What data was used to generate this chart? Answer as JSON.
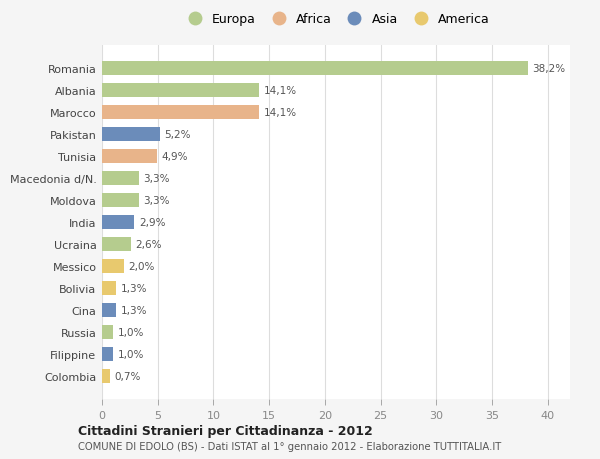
{
  "categories": [
    "Romania",
    "Albania",
    "Marocco",
    "Pakistan",
    "Tunisia",
    "Macedonia d/N.",
    "Moldova",
    "India",
    "Ucraina",
    "Messico",
    "Bolivia",
    "Cina",
    "Russia",
    "Filippine",
    "Colombia"
  ],
  "values": [
    38.2,
    14.1,
    14.1,
    5.2,
    4.9,
    3.3,
    3.3,
    2.9,
    2.6,
    2.0,
    1.3,
    1.3,
    1.0,
    1.0,
    0.7
  ],
  "labels": [
    "38,2%",
    "14,1%",
    "14,1%",
    "5,2%",
    "4,9%",
    "3,3%",
    "3,3%",
    "2,9%",
    "2,6%",
    "2,0%",
    "1,3%",
    "1,3%",
    "1,0%",
    "1,0%",
    "0,7%"
  ],
  "colors": [
    "#b5cc8e",
    "#b5cc8e",
    "#e8b48a",
    "#6b8cba",
    "#e8b48a",
    "#b5cc8e",
    "#b5cc8e",
    "#6b8cba",
    "#b5cc8e",
    "#e8c96e",
    "#e8c96e",
    "#6b8cba",
    "#b5cc8e",
    "#6b8cba",
    "#e8c96e"
  ],
  "legend_labels": [
    "Europa",
    "Africa",
    "Asia",
    "America"
  ],
  "legend_colors": [
    "#b5cc8e",
    "#e8b48a",
    "#6b8cba",
    "#e8c96e"
  ],
  "title": "Cittadini Stranieri per Cittadinanza - 2012",
  "subtitle": "COMUNE DI EDOLO (BS) - Dati ISTAT al 1° gennaio 2012 - Elaborazione TUTTITALIA.IT",
  "xlim": [
    0,
    42
  ],
  "xticks": [
    0,
    5,
    10,
    15,
    20,
    25,
    30,
    35,
    40
  ],
  "bg_color": "#f5f5f5",
  "bar_bg_color": "#ffffff",
  "grid_color": "#dddddd",
  "label_color": "#555555",
  "tick_color": "#888888"
}
